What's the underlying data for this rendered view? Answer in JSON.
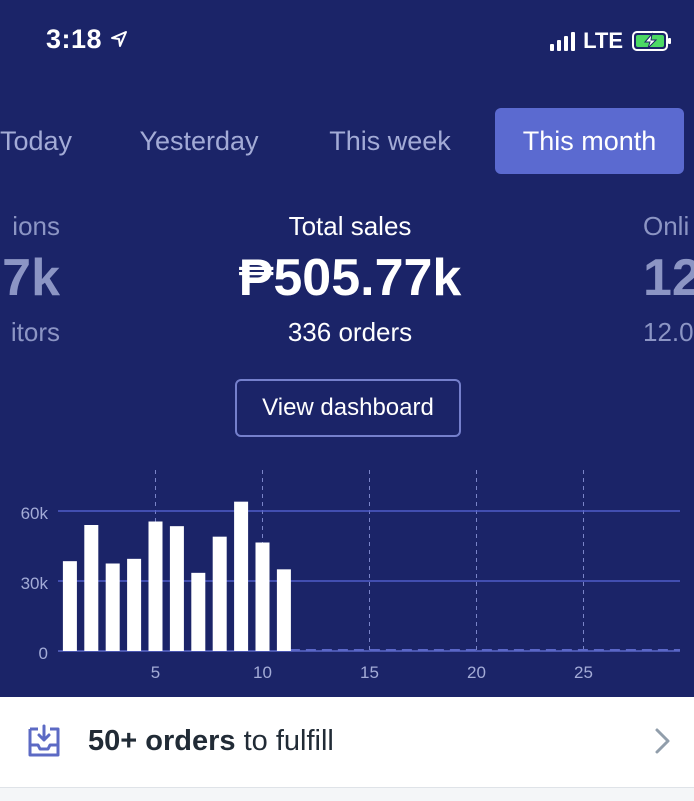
{
  "status_bar": {
    "time": "3:18",
    "network": "LTE"
  },
  "tabs": [
    {
      "label": "Today",
      "active": false
    },
    {
      "label": "Yesterday",
      "active": false
    },
    {
      "label": "This week",
      "active": false
    },
    {
      "label": "This month",
      "active": true
    }
  ],
  "metrics": {
    "left": {
      "label": "ions",
      "value": "7k",
      "sub": "itors"
    },
    "center": {
      "label": "Total sales",
      "value": "₱505.77k",
      "sub": "336 orders"
    },
    "right": {
      "label": "Onli",
      "value": "12",
      "sub": "12.0"
    }
  },
  "dashboard_button": "View dashboard",
  "fulfill": {
    "count": "50+ orders",
    "suffix": " to fulfill"
  },
  "colors": {
    "background": "#1b2468",
    "accent": "#5b6ad0",
    "muted_text": "#a3abd6"
  },
  "chart_data": {
    "type": "bar",
    "x": [
      1,
      2,
      3,
      4,
      5,
      6,
      7,
      8,
      9,
      10,
      11
    ],
    "values": [
      38500,
      54000,
      37500,
      39500,
      55500,
      53500,
      33500,
      49000,
      64000,
      46500,
      35000
    ],
    "x_ticks": [
      "5",
      "10",
      "15",
      "20",
      "25"
    ],
    "y_ticks": [
      "0",
      "30k",
      "60k"
    ],
    "xlim": [
      0.5,
      30.5
    ],
    "ylim": [
      0,
      60000
    ]
  }
}
